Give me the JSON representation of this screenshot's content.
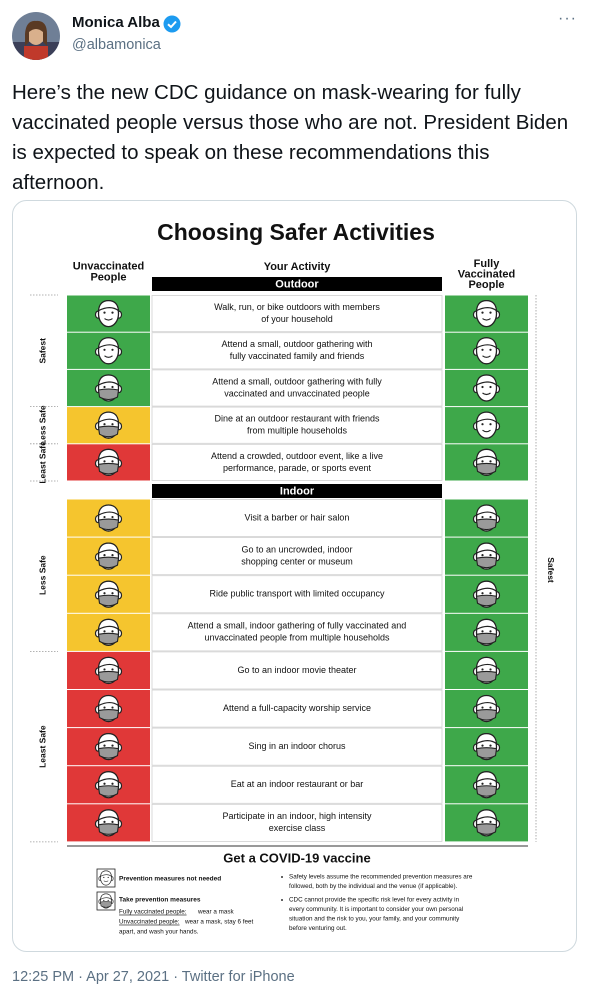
{
  "tweet": {
    "author_name": "Monica Alba",
    "handle": "@albamonica",
    "text": "Here’s the new CDC guidance on mask-wearing for fully vaccinated people versus those who are not. President Biden is expected to speak on these recommendations this afternoon.",
    "footer": "12:25 PM · Apr 27, 2021 · Twitter for iPhone"
  },
  "infographic": {
    "title": "Choosing Safer Activities",
    "col_left": [
      "Unvaccinated",
      "People"
    ],
    "col_mid": "Your Activity",
    "col_right": [
      "Fully",
      "Vaccinated",
      "People"
    ],
    "colors": {
      "green": "#3ea84a",
      "yellow": "#f5c52e",
      "red": "#e03838"
    },
    "sections": [
      {
        "name": "Outdoor",
        "rows": [
          {
            "activity": [
              "Walk, run, or bike outdoors with members",
              "of your household"
            ],
            "unvax": "green",
            "unvax_mask": false,
            "vax": "green",
            "vax_mask": false
          },
          {
            "activity": [
              "Attend a small, outdoor gathering with",
              "fully vaccinated family and friends"
            ],
            "unvax": "green",
            "unvax_mask": false,
            "vax": "green",
            "vax_mask": false
          },
          {
            "activity": [
              "Attend a small, outdoor gathering with fully",
              "vaccinated and unvaccinated people"
            ],
            "unvax": "green",
            "unvax_mask": true,
            "vax": "green",
            "vax_mask": false
          },
          {
            "activity": [
              "Dine at an outdoor restaurant with friends",
              "from multiple households"
            ],
            "unvax": "yellow",
            "unvax_mask": true,
            "vax": "green",
            "vax_mask": false
          },
          {
            "activity": [
              "Attend a crowded, outdoor event, like a live",
              "performance, parade, or sports event"
            ],
            "unvax": "red",
            "unvax_mask": true,
            "vax": "green",
            "vax_mask": true
          }
        ]
      },
      {
        "name": "Indoor",
        "rows": [
          {
            "activity": [
              "Visit a barber or hair salon"
            ],
            "unvax": "yellow",
            "unvax_mask": true,
            "vax": "green",
            "vax_mask": true
          },
          {
            "activity": [
              "Go to an uncrowded, indoor",
              "shopping center or museum"
            ],
            "unvax": "yellow",
            "unvax_mask": true,
            "vax": "green",
            "vax_mask": true
          },
          {
            "activity": [
              "Ride public transport with limited occupancy"
            ],
            "unvax": "yellow",
            "unvax_mask": true,
            "vax": "green",
            "vax_mask": true
          },
          {
            "activity": [
              "Attend a small, indoor gathering of fully vaccinated and",
              "unvaccinated people from multiple households"
            ],
            "unvax": "yellow",
            "unvax_mask": true,
            "vax": "green",
            "vax_mask": true
          },
          {
            "activity": [
              "Go to an indoor movie theater"
            ],
            "unvax": "red",
            "unvax_mask": true,
            "vax": "green",
            "vax_mask": true
          },
          {
            "activity": [
              "Attend a full-capacity worship service"
            ],
            "unvax": "red",
            "unvax_mask": true,
            "vax": "green",
            "vax_mask": true
          },
          {
            "activity": [
              "Sing in an indoor chorus"
            ],
            "unvax": "red",
            "unvax_mask": true,
            "vax": "green",
            "vax_mask": true
          },
          {
            "activity": [
              "Eat at an indoor restaurant or bar"
            ],
            "unvax": "red",
            "unvax_mask": true,
            "vax": "green",
            "vax_mask": true
          },
          {
            "activity": [
              "Participate in an indoor, high intensity",
              "exercise class"
            ],
            "unvax": "red",
            "unvax_mask": true,
            "vax": "green",
            "vax_mask": true
          }
        ]
      }
    ],
    "side_labels_left": [
      "Safest",
      "Less Safe",
      "Least Safe",
      "Less Safe",
      "Least Safe"
    ],
    "side_label_right": "Safest",
    "vaccine_heading": "Get a COVID-19 vaccine",
    "legend": {
      "no_measures": "Prevention measures not needed",
      "measures": "Take prevention measures",
      "vax_label": "Fully vaccinated people:",
      "vax_text": "wear a mask",
      "unvax_label": "Unvaccinated people:",
      "unvax_text": [
        "wear a mask, stay 6 feet",
        "apart, and wash your hands."
      ]
    },
    "notes": [
      [
        "Safety levels assume the recommended prevention measures are",
        "followed, both by the individual and the venue (if applicable)."
      ],
      [
        "CDC cannot provide the specific risk level for every activity in",
        "every community. It is important to consider your own personal",
        "situation and the risk to you, your family, and your community",
        "before venturing out."
      ]
    ]
  }
}
